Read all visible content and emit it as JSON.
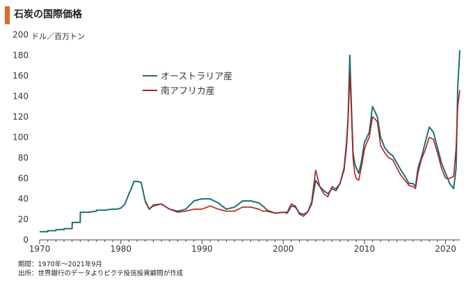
{
  "title": "石炭の国際価格",
  "unit_label": "ドル／百万トン",
  "notes": {
    "period": "期間：1970年～2021年9月",
    "source": "出所：世界銀行のデータよりピクテ投信投資顧問が作成"
  },
  "colors": {
    "title_accent": "#e06a2a",
    "australia": "#1a6f73",
    "south_africa": "#b01e1e",
    "axis": "#444444"
  },
  "chart_data": {
    "type": "line",
    "title": "石炭の国際価格",
    "ylabel": "ドル／百万トン",
    "xlabel": "",
    "xlim": [
      1970,
      2021.75
    ],
    "ylim": [
      0,
      200
    ],
    "yticks": [
      0,
      20,
      40,
      60,
      80,
      100,
      120,
      140,
      160,
      180,
      200
    ],
    "xticks": [
      1970,
      1980,
      1990,
      2000,
      2010,
      2020
    ],
    "grid": false,
    "legend": "upper-left",
    "series": [
      {
        "name": "オーストラリア産",
        "color": "#1a6f73",
        "x": [
          1970,
          1971,
          1971.01,
          1972,
          1972.01,
          1973,
          1973.01,
          1974,
          1974.01,
          1975,
          1975.01,
          1976,
          1977,
          1977.01,
          1978,
          1979,
          1979.5,
          1980,
          1980.5,
          1981,
          1981.3,
          1981.6,
          1982,
          1982.5,
          1983,
          1983.5,
          1984,
          1985,
          1986,
          1987,
          1988,
          1989,
          1990,
          1991,
          1992,
          1993,
          1994,
          1995,
          1996,
          1997,
          1997.5,
          1998,
          1999,
          2000,
          2000.5,
          2001,
          2001.5,
          2002,
          2002.5,
          2003,
          2003.5,
          2004,
          2004.5,
          2005,
          2005.5,
          2006,
          2006.5,
          2007,
          2007.5,
          2007.8,
          2008,
          2008.2,
          2008.4,
          2008.6,
          2008.8,
          2009,
          2009.3,
          2009.6,
          2010,
          2010.3,
          2010.6,
          2011,
          2011.3,
          2011.6,
          2012,
          2012.5,
          2013,
          2013.5,
          2014,
          2014.5,
          2015,
          2015.5,
          2016,
          2016.3,
          2016.6,
          2017,
          2017.5,
          2018,
          2018.5,
          2019,
          2019.5,
          2020,
          2020.5,
          2021,
          2021.3,
          2021.5,
          2021.75
        ],
        "values": [
          8,
          8,
          9,
          9,
          10,
          10,
          11,
          11,
          17,
          17,
          27,
          27,
          28,
          29,
          29,
          30,
          30,
          31,
          35,
          45,
          50,
          57,
          57,
          56,
          38,
          30,
          34,
          35,
          30,
          28,
          30,
          38,
          40,
          40,
          36,
          30,
          32,
          38,
          38,
          36,
          33,
          29,
          26,
          27,
          26,
          33,
          32,
          26,
          25,
          27,
          35,
          58,
          52,
          48,
          45,
          50,
          48,
          55,
          70,
          95,
          120,
          180,
          130,
          85,
          75,
          70,
          65,
          75,
          95,
          100,
          105,
          130,
          125,
          120,
          100,
          90,
          85,
          82,
          75,
          68,
          62,
          55,
          55,
          52,
          70,
          80,
          95,
          110,
          105,
          90,
          75,
          65,
          55,
          50,
          70,
          150,
          185
        ]
      },
      {
        "name": "南アフリカ産",
        "color": "#b01e1e",
        "x": [
          1983,
          1983.5,
          1984,
          1985,
          1986,
          1987,
          1988,
          1989,
          1990,
          1991,
          1992,
          1993,
          1994,
          1995,
          1996,
          1997,
          1997.5,
          1998,
          1999,
          2000,
          2000.5,
          2001,
          2001.5,
          2002,
          2002.5,
          2003,
          2003.5,
          2004,
          2004.5,
          2005,
          2005.5,
          2006,
          2006.5,
          2007,
          2007.5,
          2007.8,
          2008,
          2008.2,
          2008.4,
          2008.6,
          2008.8,
          2009,
          2009.3,
          2009.6,
          2010,
          2010.3,
          2010.6,
          2011,
          2011.3,
          2011.6,
          2012,
          2012.5,
          2013,
          2013.5,
          2014,
          2014.5,
          2015,
          2015.5,
          2016,
          2016.3,
          2016.6,
          2017,
          2017.5,
          2018,
          2018.5,
          2019,
          2019.5,
          2020,
          2020.5,
          2021,
          2021.3,
          2021.5,
          2021.75
        ],
        "values": [
          37,
          30,
          33,
          35,
          30,
          27,
          28,
          30,
          30,
          33,
          30,
          28,
          28,
          32,
          32,
          30,
          28,
          28,
          26,
          27,
          27,
          35,
          33,
          25,
          23,
          27,
          37,
          68,
          52,
          45,
          42,
          52,
          50,
          55,
          68,
          90,
          118,
          162,
          125,
          80,
          65,
          60,
          58,
          70,
          88,
          95,
          100,
          120,
          118,
          115,
          92,
          85,
          80,
          78,
          70,
          63,
          58,
          53,
          52,
          50,
          65,
          78,
          88,
          100,
          98,
          85,
          70,
          60,
          60,
          62,
          90,
          130,
          146
        ]
      }
    ]
  }
}
